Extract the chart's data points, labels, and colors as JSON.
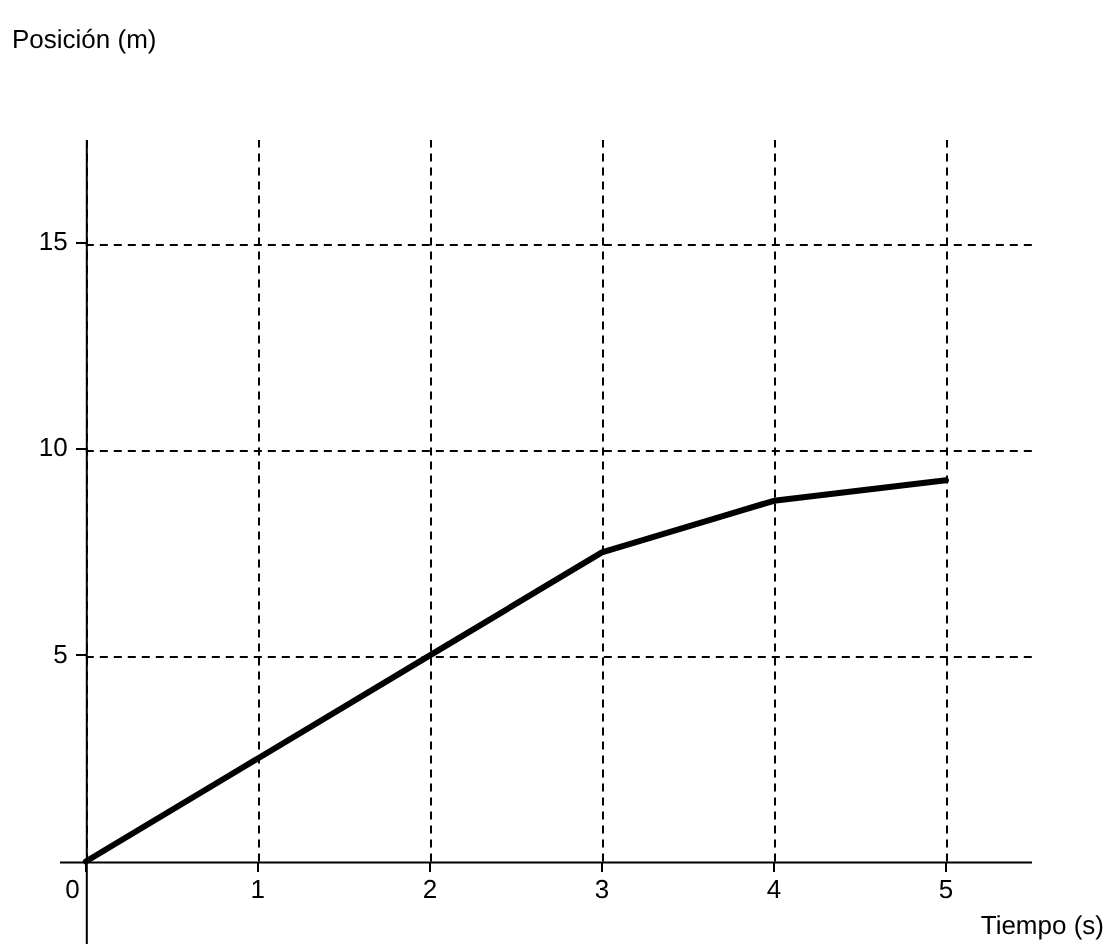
{
  "chart_data": {
    "type": "line",
    "xlabel": "Tiempo (s)",
    "ylabel": "Posición (m)",
    "x": [
      0,
      1,
      2,
      3,
      4,
      5
    ],
    "series": [
      {
        "color": "#000000",
        "values": [
          0,
          2.5,
          5,
          7.5,
          8.75,
          9.25
        ]
      }
    ],
    "xlim": [
      -0.15,
      5.5
    ],
    "ylim": [
      -2,
      17.5
    ],
    "xticks": [
      0,
      1,
      2,
      3,
      4,
      5
    ],
    "yticks": [
      5,
      10,
      15
    ],
    "grid": true,
    "legend": false,
    "marker": "none",
    "line_style": "solid"
  }
}
